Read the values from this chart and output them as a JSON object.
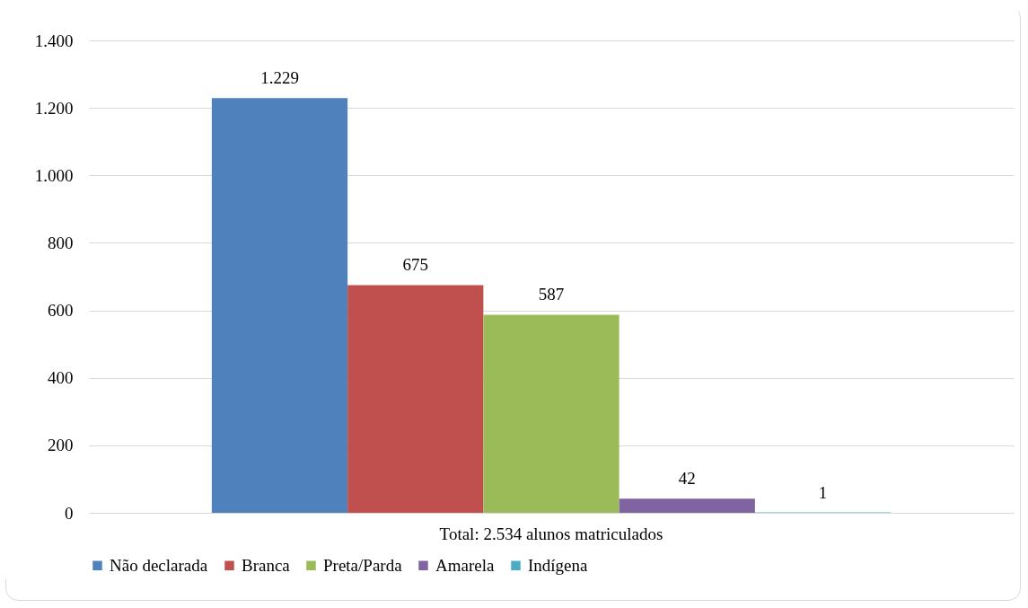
{
  "chart_data": {
    "type": "bar",
    "categories": [
      "Total: 2.534 alunos matriculados"
    ],
    "series": [
      {
        "name": "Não declarada",
        "color": "#4f81bd",
        "values": [
          1229
        ],
        "value_labels": [
          "1.229"
        ]
      },
      {
        "name": "Branca",
        "color": "#c0504d",
        "values": [
          675
        ],
        "value_labels": [
          "675"
        ]
      },
      {
        "name": "Preta/Parda",
        "color": "#9bbb59",
        "values": [
          587
        ],
        "value_labels": [
          "587"
        ]
      },
      {
        "name": "Amarela",
        "color": "#8064a2",
        "values": [
          42
        ],
        "value_labels": [
          "42"
        ]
      },
      {
        "name": "Indígena",
        "color": "#4bacc6",
        "values": [
          1
        ],
        "value_labels": [
          "1"
        ]
      }
    ],
    "ylim": [
      0,
      1400
    ],
    "yticks": [
      0,
      200,
      400,
      600,
      800,
      {
        "value": 1000,
        "label": "1.000"
      },
      {
        "value": 1200,
        "label": "1.200"
      },
      {
        "value": 1400,
        "label": "1.400"
      }
    ],
    "grid": "y",
    "legend": "bottom"
  }
}
